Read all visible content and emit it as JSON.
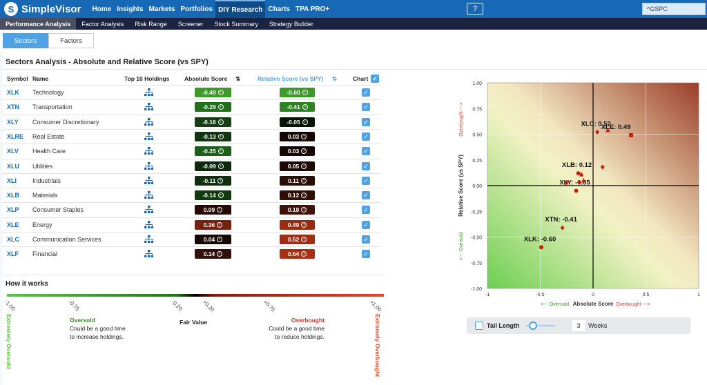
{
  "app": {
    "name": "SimpleVisor",
    "logo_letter": "S"
  },
  "nav": {
    "items": [
      "Home",
      "Insights",
      "Markets",
      "Portfolios",
      "DIY Research",
      "Charts",
      "TPA PRO+"
    ],
    "active": "DIY Research"
  },
  "search": {
    "value": "^GSPC"
  },
  "subnav": {
    "items": [
      "Performance Analysis",
      "Factor Analysis",
      "Risk Range",
      "Screener",
      "Stock Summary",
      "Strategy Builder"
    ],
    "active": "Performance Analysis"
  },
  "tabs": {
    "items": [
      "Sectors",
      "Factors"
    ],
    "active": "Sectors"
  },
  "page_title": "Sectors Analysis - Absolute and Relative Score (vs SPY)",
  "table": {
    "headers": {
      "symbol": "Symbol",
      "name": "Name",
      "holdings": "Top 10 Holdings",
      "absolute": "Absolute Score",
      "relative": "Relative Score (vs SPY)",
      "chart": "Chart"
    },
    "rows": [
      {
        "symbol": "XLK",
        "name": "Technology",
        "abs": "-0.49",
        "rel": "-0.60",
        "abs_color": "#3d9a2a",
        "rel_color": "#3d9a2a"
      },
      {
        "symbol": "XTN",
        "name": "Transportation",
        "abs": "-0.29",
        "rel": "-0.41",
        "abs_color": "#236e1c",
        "rel_color": "#2f8422"
      },
      {
        "symbol": "XLY",
        "name": "Consumer Discretionary",
        "abs": "-0.16",
        "rel": "-0.05",
        "abs_color": "#143f12",
        "rel_color": "#061404"
      },
      {
        "symbol": "XLRE",
        "name": "Real Estate",
        "abs": "-0.13",
        "rel": "0.03",
        "abs_color": "#113510",
        "rel_color": "#160604"
      },
      {
        "symbol": "XLV",
        "name": "Health Care",
        "abs": "-0.25",
        "rel": "0.03",
        "abs_color": "#1d5e18",
        "rel_color": "#160604"
      },
      {
        "symbol": "XLU",
        "name": "Utilities",
        "abs": "-0.09",
        "rel": "0.05",
        "abs_color": "#0c2a0b",
        "rel_color": "#1c0805"
      },
      {
        "symbol": "XLI",
        "name": "Industrials",
        "abs": "-0.11",
        "rel": "0.11",
        "abs_color": "#0f2f0d",
        "rel_color": "#2c0c06"
      },
      {
        "symbol": "XLB",
        "name": "Materials",
        "abs": "-0.14",
        "rel": "0.12",
        "abs_color": "#123a10",
        "rel_color": "#300d07"
      },
      {
        "symbol": "XLP",
        "name": "Consumer Staples",
        "abs": "0.09",
        "rel": "0.18",
        "abs_color": "#260904",
        "rel_color": "#401208"
      },
      {
        "symbol": "XLE",
        "name": "Energy",
        "abs": "0.36",
        "rel": "0.49",
        "abs_color": "#7a200e",
        "rel_color": "#9a2a10"
      },
      {
        "symbol": "XLC",
        "name": "Communication Services",
        "abs": "0.04",
        "rel": "0.52",
        "abs_color": "#160604",
        "rel_color": "#a32c12"
      },
      {
        "symbol": "XLF",
        "name": "Financial",
        "abs": "0.14",
        "rel": "0.54",
        "abs_color": "#34100a",
        "rel_color": "#a82e14"
      }
    ]
  },
  "how": {
    "title": "How it works",
    "ticks": [
      "-1.00",
      "-0.75",
      "-0.20",
      "+0.20",
      "+0.75",
      "+1.00"
    ],
    "oversold_title": "Oversold",
    "oversold_text": "Could be a good time to increase holdings.",
    "fair": "Fair Value",
    "overbought_title": "Overbought",
    "overbought_text": "Could be a good time to reduce holdings.",
    "extreme_left": "Extremely Oversold",
    "extreme_right": "Extremely Overbought"
  },
  "chart_data": {
    "type": "scatter",
    "xlabel": "Absolute Score",
    "ylabel": "Relative Score (vs SPY)",
    "xlabel_left": "<--- Oversold",
    "xlabel_right": "Overbought --->",
    "ylabel_top": "Overbought --->",
    "ylabel_bottom": "<--- Oversold",
    "xlim": [
      -1,
      1
    ],
    "ylim": [
      -1,
      1
    ],
    "xticks": [
      "-1",
      "-0.5",
      "0",
      "0.5",
      "1"
    ],
    "yticks": [
      "1.00",
      "0.75",
      "0.50",
      "0.25",
      "0.00",
      "-0.25",
      "-0.50",
      "-0.75",
      "-1.00"
    ],
    "points": [
      {
        "label": "XLK: -0.60",
        "x": -0.49,
        "y": -0.6,
        "show_label": true,
        "shape": "circle"
      },
      {
        "label": "XTN: -0.41",
        "x": -0.29,
        "y": -0.41,
        "show_label": true,
        "shape": "diamond"
      },
      {
        "label": "XLY: -0.05",
        "x": -0.16,
        "y": -0.05,
        "show_label": true,
        "shape": "circle"
      },
      {
        "label": "XLRE",
        "x": -0.13,
        "y": 0.03,
        "show_label": false,
        "shape": "diamond"
      },
      {
        "label": "XLV",
        "x": -0.25,
        "y": 0.03,
        "show_label": false,
        "shape": "diamond"
      },
      {
        "label": "XLU",
        "x": -0.09,
        "y": 0.05,
        "show_label": false,
        "shape": "triangle"
      },
      {
        "label": "XLI",
        "x": -0.11,
        "y": 0.11,
        "show_label": false,
        "shape": "triangle"
      },
      {
        "label": "XLB: 0.12",
        "x": -0.14,
        "y": 0.12,
        "show_label": true,
        "shape": "circle"
      },
      {
        "label": "XLP",
        "x": 0.09,
        "y": 0.18,
        "show_label": false,
        "shape": "diamond"
      },
      {
        "label": "XLE: 0.49",
        "x": 0.36,
        "y": 0.49,
        "show_label": true,
        "shape": "square"
      },
      {
        "label": "XLC: 0.52",
        "x": 0.04,
        "y": 0.52,
        "show_label": true,
        "shape": "diamond"
      },
      {
        "label": "XLF",
        "x": 0.14,
        "y": 0.54,
        "show_label": false,
        "shape": "triangle"
      }
    ]
  },
  "tail": {
    "label": "Tail Length",
    "value": "3",
    "unit": "Weeks"
  }
}
